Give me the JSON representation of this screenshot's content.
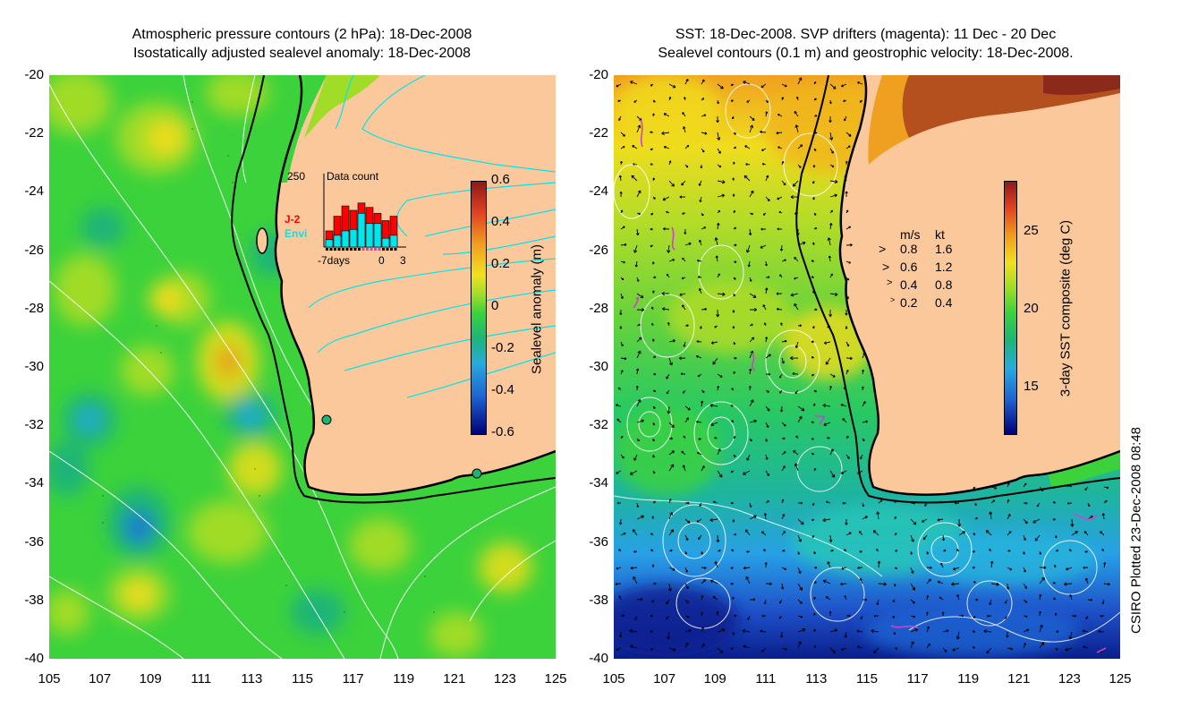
{
  "left_panel": {
    "title_line1": "Atmospheric pressure contours (2 hPa): 18-Dec-2008",
    "title_line2": "Isostatically adjusted sealevel anomaly: 18-Dec-2008",
    "colorbar": {
      "label": "Sealevel anomaly (m)",
      "ticks": [
        "0.6",
        "0.4",
        "0.2",
        "0",
        "-0.2",
        "-0.4",
        "-0.6"
      ]
    },
    "histogram": {
      "title": "Data count",
      "ymax_label": "250",
      "series_labels": [
        "J-2",
        "Envi"
      ],
      "series_colors": [
        "#ff0000",
        "#00e5ee"
      ],
      "x_labels": [
        "-7days",
        "0",
        "3"
      ],
      "bars_total": [
        55,
        105,
        140,
        125,
        150,
        135,
        115,
        90,
        105
      ],
      "bars_envi": [
        25,
        40,
        55,
        60,
        115,
        80,
        80,
        30,
        40
      ]
    }
  },
  "right_panel": {
    "title_line1": "SST: 18-Dec-2008. SVP drifters (magenta): 11 Dec - 20 Dec",
    "title_line2": "Sealevel contours (0.1 m) and geostrophic velocity: 18-Dec-2008.",
    "colorbar": {
      "label": "3-day SST composite (deg C)",
      "ticks": [
        "25",
        "20",
        "15"
      ]
    },
    "velocity_legend": {
      "header_ms": "m/s",
      "header_kt": "kt",
      "rows": [
        {
          "ms": "0.8",
          "kt": "1.6"
        },
        {
          "ms": "0.6",
          "kt": "1.2"
        },
        {
          "ms": "0.4",
          "kt": "0.8"
        },
        {
          "ms": "0.2",
          "kt": "0.4"
        }
      ]
    }
  },
  "axes": {
    "lat_labels": [
      "-20",
      "-22",
      "-24",
      "-26",
      "-28",
      "-30",
      "-32",
      "-34",
      "-36",
      "-38",
      "-40"
    ],
    "lon_labels": [
      "105",
      "107",
      "109",
      "111",
      "113",
      "115",
      "117",
      "119",
      "121",
      "123",
      "125"
    ]
  },
  "footer": {
    "credit": "CSIRO Plotted 23-Dec-2008 08:48"
  },
  "colors": {
    "land": "#fac89b",
    "ocean_green": "#3cd23c",
    "contour_cyan": "#00e5ee",
    "drifter_magenta": "#d040d0"
  }
}
